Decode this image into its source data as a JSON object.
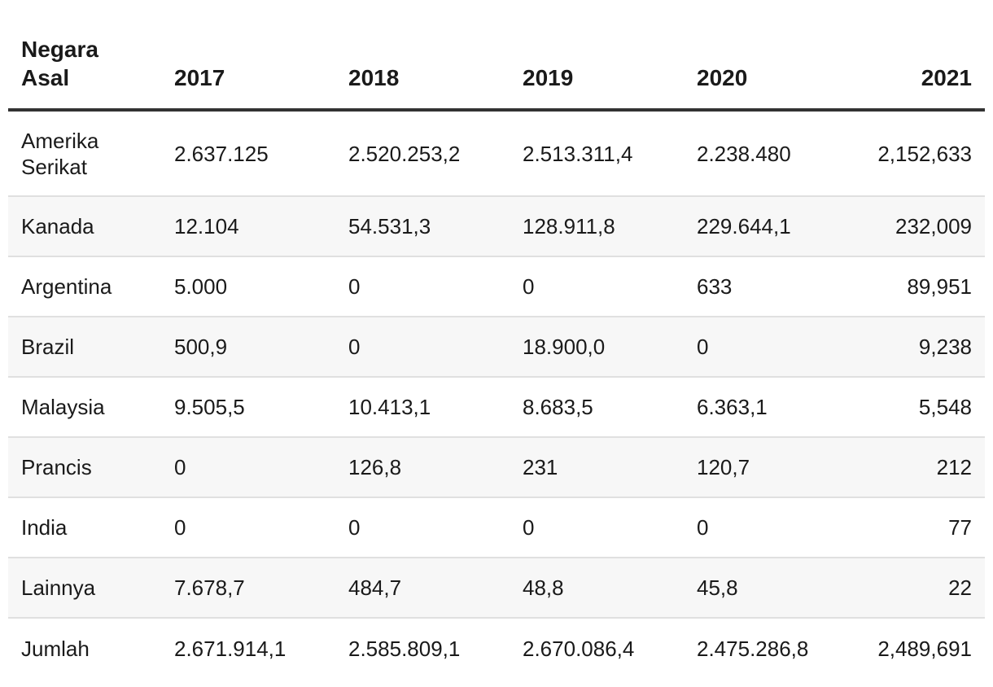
{
  "table": {
    "headers": [
      "Negara Asal",
      "2017",
      "2018",
      "2019",
      "2020",
      "2021"
    ],
    "rows": [
      [
        "Amerika Serikat",
        "2.637.125",
        "2.520.253,2",
        "2.513.311,4",
        "2.238.480",
        "2,152,633"
      ],
      [
        "Kanada",
        "12.104",
        "54.531,3",
        "128.911,8",
        "229.644,1",
        "232,009"
      ],
      [
        "Argentina",
        "5.000",
        "0",
        "0",
        "633",
        "89,951"
      ],
      [
        "Brazil",
        "500,9",
        "0",
        "18.900,0",
        "0",
        "9,238"
      ],
      [
        "Malaysia",
        "9.505,5",
        "10.413,1",
        "8.683,5",
        "6.363,1",
        "5,548"
      ],
      [
        "Prancis",
        "0",
        "126,8",
        "231",
        "120,7",
        "212"
      ],
      [
        "India",
        "0",
        "0",
        "0",
        "0",
        "77"
      ],
      [
        "Lainnya",
        "7.678,7",
        "484,7",
        "48,8",
        "45,8",
        "22"
      ],
      [
        "Jumlah",
        "2.671.914,1",
        "2.585.809,1",
        "2.670.086,4",
        "2.475.286,8",
        "2,489,691"
      ]
    ]
  }
}
